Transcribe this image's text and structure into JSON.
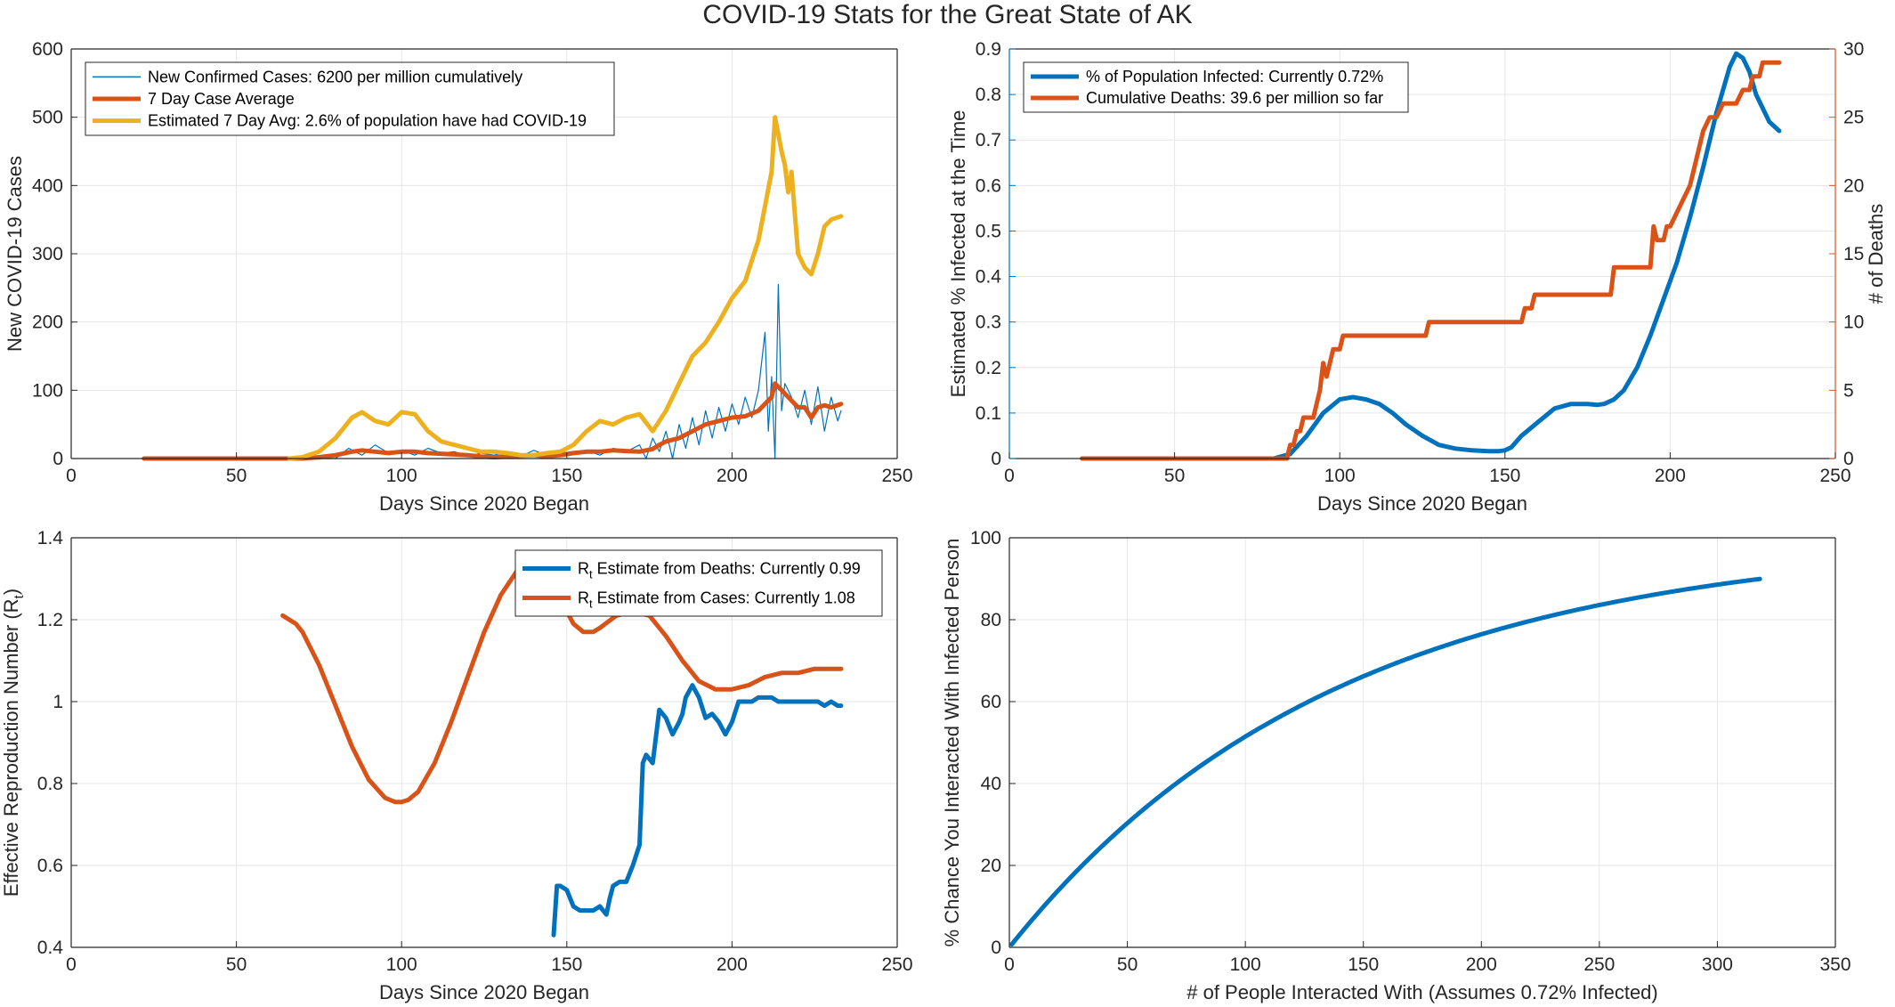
{
  "figure_title": "COVID-19 Stats for the Great State of AK",
  "colors": {
    "blue": "#0072BD",
    "orange": "#D95319",
    "yellow": "#EDB120",
    "axis": "#262626",
    "grid": "#e6e6e6"
  },
  "chart_data": [
    {
      "type": "line",
      "xlabel": "Days Since 2020 Began",
      "ylabel": "New COVID-19 Cases",
      "xlim": [
        0,
        250
      ],
      "ylim": [
        0,
        600
      ],
      "xticks": [
        0,
        50,
        100,
        150,
        200,
        250
      ],
      "yticks": [
        0,
        100,
        200,
        300,
        400,
        500,
        600
      ],
      "grid": true,
      "legend_position": "top-left",
      "series": [
        {
          "name": "New Confirmed Cases: 6200 per million cumulatively",
          "color": "#0072BD",
          "line_width": "thin",
          "x": [
            22,
            80,
            84,
            88,
            92,
            96,
            100,
            104,
            108,
            112,
            116,
            120,
            124,
            128,
            132,
            136,
            140,
            144,
            148,
            152,
            156,
            160,
            164,
            168,
            172,
            174,
            176,
            178,
            180,
            182,
            184,
            186,
            188,
            190,
            192,
            194,
            196,
            198,
            200,
            202,
            204,
            206,
            208,
            210,
            211,
            212,
            213,
            214,
            215,
            216,
            218,
            220,
            222,
            224,
            226,
            228,
            230,
            232,
            233
          ],
          "y": [
            0,
            0,
            15,
            5,
            20,
            8,
            12,
            5,
            15,
            8,
            10,
            3,
            8,
            5,
            10,
            3,
            12,
            5,
            8,
            10,
            12,
            5,
            15,
            10,
            20,
            0,
            30,
            10,
            40,
            0,
            50,
            15,
            60,
            20,
            70,
            30,
            75,
            40,
            80,
            50,
            90,
            60,
            100,
            185,
            40,
            120,
            0,
            255,
            70,
            110,
            90,
            60,
            100,
            50,
            105,
            40,
            90,
            55,
            70
          ]
        },
        {
          "name": "7 Day Case Average",
          "color": "#D95319",
          "line_width": "thick",
          "x": [
            22,
            60,
            66,
            70,
            75,
            80,
            85,
            88,
            92,
            96,
            100,
            104,
            108,
            112,
            116,
            120,
            124,
            128,
            132,
            136,
            140,
            144,
            148,
            152,
            156,
            160,
            164,
            168,
            172,
            176,
            178,
            180,
            184,
            188,
            192,
            196,
            200,
            204,
            208,
            212,
            213,
            215,
            218,
            220,
            222,
            224,
            226,
            228,
            230,
            233
          ],
          "y": [
            0,
            0,
            0,
            0,
            2,
            5,
            10,
            12,
            10,
            8,
            10,
            10,
            8,
            7,
            6,
            5,
            3,
            2,
            3,
            4,
            5,
            3,
            5,
            8,
            10,
            10,
            12,
            11,
            10,
            14,
            20,
            25,
            30,
            40,
            50,
            55,
            60,
            62,
            70,
            90,
            110,
            100,
            85,
            75,
            75,
            60,
            75,
            78,
            75,
            80
          ]
        },
        {
          "name": "Estimated 7 Day Avg: 2.6% of population have had COVID-19",
          "color": "#EDB120",
          "line_width": "thick",
          "x": [
            66,
            70,
            75,
            80,
            85,
            88,
            92,
            96,
            100,
            104,
            108,
            112,
            116,
            120,
            124,
            128,
            132,
            136,
            140,
            144,
            148,
            152,
            156,
            160,
            164,
            168,
            172,
            176,
            180,
            184,
            188,
            192,
            196,
            200,
            204,
            208,
            212,
            213,
            215,
            216,
            217,
            218,
            220,
            222,
            224,
            226,
            228,
            230,
            233
          ],
          "y": [
            0,
            2,
            10,
            30,
            60,
            68,
            55,
            50,
            68,
            65,
            40,
            25,
            20,
            15,
            10,
            10,
            8,
            5,
            5,
            8,
            10,
            20,
            40,
            55,
            50,
            60,
            65,
            40,
            70,
            110,
            150,
            170,
            200,
            235,
            260,
            320,
            420,
            500,
            450,
            430,
            390,
            420,
            300,
            280,
            270,
            300,
            340,
            350,
            355
          ]
        }
      ]
    },
    {
      "type": "line",
      "xlabel": "Days Since 2020 Began",
      "ylabel": "Estimated % Infected at the Time",
      "ylabel_right": "# of Deaths",
      "xlim": [
        0,
        250
      ],
      "ylim": [
        0,
        0.9
      ],
      "ylim_right": [
        0,
        30
      ],
      "xticks": [
        0,
        50,
        100,
        150,
        200,
        250
      ],
      "yticks": [
        0,
        0.1,
        0.2,
        0.3,
        0.4,
        0.5,
        0.6,
        0.7,
        0.8,
        0.9
      ],
      "yticks_right": [
        0,
        5,
        10,
        15,
        20,
        25,
        30
      ],
      "grid": true,
      "legend_position": "top-left",
      "series": [
        {
          "name": "% of Population Infected: Currently 0.72%",
          "color": "#0072BD",
          "axis": "left",
          "x": [
            22,
            70,
            80,
            85,
            90,
            95,
            100,
            104,
            108,
            112,
            116,
            120,
            125,
            130,
            135,
            140,
            145,
            148,
            150,
            152,
            155,
            160,
            165,
            170,
            175,
            178,
            180,
            183,
            186,
            190,
            194,
            198,
            202,
            206,
            210,
            214,
            218,
            220,
            222,
            224,
            226,
            228,
            230,
            233
          ],
          "y": [
            0,
            0,
            0,
            0.01,
            0.05,
            0.1,
            0.13,
            0.135,
            0.13,
            0.12,
            0.1,
            0.075,
            0.05,
            0.03,
            0.022,
            0.018,
            0.016,
            0.016,
            0.018,
            0.025,
            0.05,
            0.08,
            0.11,
            0.12,
            0.12,
            0.118,
            0.12,
            0.13,
            0.15,
            0.2,
            0.27,
            0.35,
            0.43,
            0.53,
            0.64,
            0.76,
            0.86,
            0.89,
            0.88,
            0.85,
            0.8,
            0.77,
            0.74,
            0.72
          ]
        },
        {
          "name": "Cumulative Deaths: 39.6 per million so far",
          "color": "#D95319",
          "axis": "right",
          "x": [
            22,
            84,
            85,
            86,
            87,
            88,
            89,
            90,
            91,
            92,
            93,
            94,
            95,
            96,
            97,
            98,
            99,
            100,
            101,
            102,
            103,
            104,
            126,
            127,
            155,
            156,
            158,
            159,
            182,
            183,
            194,
            195,
            196,
            197,
            198,
            199,
            200,
            202,
            204,
            206,
            208,
            210,
            212,
            214,
            216,
            218,
            220,
            222,
            224,
            225,
            226,
            227,
            228,
            229,
            230,
            233
          ],
          "y": [
            0,
            0,
            1,
            1,
            2,
            2,
            3,
            3,
            3,
            3,
            4,
            5,
            7,
            6,
            7,
            8,
            8,
            8,
            9,
            9,
            9,
            9,
            9,
            10,
            10,
            11,
            11,
            12,
            12,
            14,
            14,
            17,
            16,
            16,
            16,
            17,
            17,
            18,
            19,
            20,
            22,
            24,
            25,
            25,
            26,
            26,
            26,
            27,
            27,
            28,
            28,
            28,
            29,
            29,
            29,
            29
          ]
        }
      ]
    },
    {
      "type": "line",
      "xlabel": "Days Since 2020 Began",
      "ylabel_main": "Effective Reproduction Number (R",
      "ylabel_sub": "t",
      "ylabel_end": ")",
      "xlim": [
        0,
        250
      ],
      "ylim": [
        0.4,
        1.4
      ],
      "xticks": [
        0,
        50,
        100,
        150,
        200,
        250
      ],
      "yticks": [
        0.4,
        0.6,
        0.8,
        1,
        1.2,
        1.4
      ],
      "grid": true,
      "legend_position": "top-right",
      "series": [
        {
          "name_main": "R",
          "name_sub": "t",
          "name_rest": " Estimate from Deaths: Currently 0.99",
          "color": "#0072BD",
          "x": [
            146,
            147,
            148,
            150,
            152,
            154,
            155,
            158,
            160,
            162,
            163,
            164,
            166,
            168,
            170,
            172,
            173,
            174,
            176,
            178,
            180,
            182,
            184,
            185,
            186,
            188,
            190,
            192,
            194,
            196,
            198,
            200,
            202,
            204,
            206,
            208,
            210,
            212,
            214,
            216,
            218,
            220,
            222,
            224,
            226,
            228,
            230,
            232,
            233
          ],
          "y": [
            0.43,
            0.55,
            0.55,
            0.54,
            0.5,
            0.49,
            0.49,
            0.49,
            0.5,
            0.48,
            0.52,
            0.55,
            0.56,
            0.56,
            0.6,
            0.65,
            0.85,
            0.87,
            0.85,
            0.98,
            0.96,
            0.92,
            0.95,
            0.97,
            1.01,
            1.04,
            1.01,
            0.96,
            0.97,
            0.95,
            0.92,
            0.95,
            1.0,
            1.0,
            1.0,
            1.01,
            1.01,
            1.01,
            1.0,
            1.0,
            1.0,
            1.0,
            1.0,
            1.0,
            1.0,
            0.99,
            1.0,
            0.99,
            0.99
          ]
        },
        {
          "name_main": "R",
          "name_sub": "t",
          "name_rest": " Estimate from Cases: Currently 1.08",
          "color": "#D95319",
          "x": [
            64,
            66,
            68,
            70,
            75,
            80,
            85,
            90,
            95,
            98,
            100,
            102,
            105,
            110,
            115,
            120,
            125,
            130,
            135,
            140,
            145,
            150,
            152,
            155,
            158,
            160,
            165,
            170,
            175,
            180,
            185,
            190,
            195,
            200,
            205,
            210,
            215,
            220,
            225,
            230,
            233
          ],
          "y": [
            1.21,
            1.2,
            1.19,
            1.17,
            1.09,
            0.99,
            0.89,
            0.81,
            0.765,
            0.755,
            0.755,
            0.76,
            0.78,
            0.85,
            0.95,
            1.06,
            1.17,
            1.26,
            1.32,
            1.33,
            1.26,
            1.22,
            1.19,
            1.17,
            1.17,
            1.18,
            1.21,
            1.22,
            1.21,
            1.16,
            1.1,
            1.05,
            1.03,
            1.03,
            1.04,
            1.06,
            1.07,
            1.07,
            1.08,
            1.08,
            1.08
          ]
        }
      ]
    },
    {
      "type": "line",
      "xlabel": "# of People Interacted With (Assumes 0.72% Infected)",
      "ylabel": "% Chance You Interacted With Infected Person",
      "xlim": [
        0,
        350
      ],
      "ylim": [
        0,
        100
      ],
      "xticks": [
        0,
        50,
        100,
        150,
        200,
        250,
        300,
        350
      ],
      "yticks": [
        0,
        20,
        40,
        60,
        80,
        100
      ],
      "grid": true,
      "infection_rate": 0.0072,
      "x_max": 318,
      "series": [
        {
          "name": "",
          "color": "#0072BD",
          "formula": "100*(1-(1-p)^n)"
        }
      ]
    }
  ]
}
